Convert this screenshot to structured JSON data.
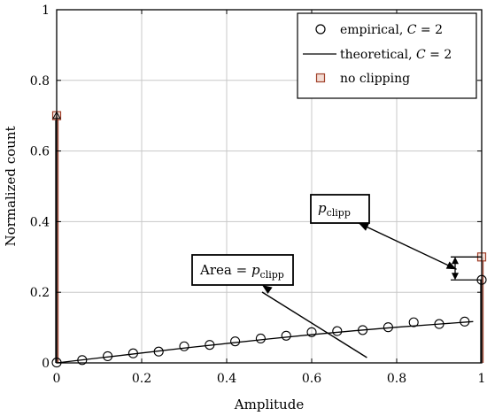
{
  "chart_data": {
    "type": "scatter",
    "xlabel": "Amplitude",
    "ylabel": "Normalized count",
    "xlim": [
      0,
      1
    ],
    "ylim": [
      0,
      1
    ],
    "x_ticks": [
      0,
      0.2,
      0.4,
      0.6,
      0.8,
      1
    ],
    "x_tick_labels": [
      "0",
      "0.2",
      "0.4",
      "0.6",
      "0.8",
      "1"
    ],
    "y_ticks": [
      0,
      0.2,
      0.4,
      0.6,
      0.8,
      1
    ],
    "y_tick_labels": [
      "0",
      "0.2",
      "0.4",
      "0.6",
      "0.8",
      "1"
    ],
    "grid": true,
    "legend_position": "top-right",
    "series": [
      {
        "name": "empirical, C = 2",
        "legend_prefix": "empirical, ",
        "legend_var": "C",
        "legend_suffix": " = 2",
        "style": "circle-markers",
        "color": "#000000",
        "x": [
          0,
          0.06,
          0.12,
          0.18,
          0.24,
          0.3,
          0.36,
          0.42,
          0.48,
          0.54,
          0.6,
          0.66,
          0.72,
          0.78,
          0.84,
          0.9,
          0.96,
          1.0
        ],
        "y": [
          0.001,
          0.008,
          0.019,
          0.027,
          0.032,
          0.047,
          0.051,
          0.061,
          0.069,
          0.077,
          0.087,
          0.09,
          0.093,
          0.101,
          0.115,
          0.11,
          0.117,
          0.235
        ]
      },
      {
        "name": "theoretical, C = 2",
        "legend_prefix": "theoretical, ",
        "legend_var": "C",
        "legend_suffix": " = 2",
        "style": "line",
        "color": "#000000",
        "x": [
          0,
          0.1,
          0.2,
          0.3,
          0.4,
          0.5,
          0.6,
          0.7,
          0.8,
          0.9,
          0.98
        ],
        "y": [
          0,
          0.014,
          0.028,
          0.042,
          0.055,
          0.068,
          0.08,
          0.091,
          0.101,
          0.11,
          0.117
        ],
        "spikes": [
          {
            "x": 0,
            "y": 0.7
          },
          {
            "x": 1,
            "y": 0.235
          }
        ]
      },
      {
        "name": "no clipping",
        "style": "square-markers",
        "color": "#a0402a",
        "x": [
          0,
          1
        ],
        "y": [
          0.7,
          0.3
        ]
      }
    ],
    "annotations": [
      {
        "id": "area",
        "label_main": "Area = ",
        "label_var": "p",
        "label_sub": "clipp",
        "arrow_tip": {
          "x": 0.73,
          "y": 0.015
        }
      },
      {
        "id": "pclipp",
        "label_var": "p",
        "label_sub": "clipp",
        "arrow_tip": {
          "x": 0.97,
          "y": 0.265
        }
      }
    ]
  }
}
